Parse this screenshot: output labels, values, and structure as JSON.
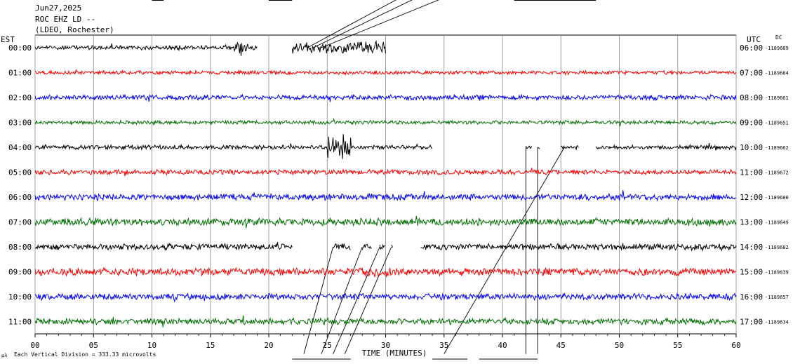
{
  "header": {
    "date": "Jun27,2025",
    "station": "ROC EHZ LD --",
    "network": "(LDEO, Rochester)"
  },
  "labels": {
    "left_zone": "EST",
    "right_zone": "UTC",
    "dc": "DC",
    "x_title": "TIME (MINUTES)",
    "scale_note": "Each Vertical Division =  333.33 microvolts",
    "corner_mark": "μλ"
  },
  "chart_data": {
    "type": "line",
    "title": "",
    "xlabel": "TIME (MINUTES)",
    "ylabel": "",
    "xlim": [
      0,
      60
    ],
    "x_ticks": [
      "00",
      "05",
      "10",
      "15",
      "20",
      "25",
      "30",
      "35",
      "40",
      "45",
      "50",
      "55",
      "60"
    ],
    "grid": true,
    "trace_colors": [
      "#000000",
      "#ff0000",
      "#0000ff",
      "#007000"
    ],
    "rows": [
      {
        "est": "00:00",
        "utc": "06:00",
        "dc": "-1189689",
        "color": "#000000"
      },
      {
        "est": "01:00",
        "utc": "07:00",
        "dc": "-1189684",
        "color": "#ff0000"
      },
      {
        "est": "02:00",
        "utc": "08:00",
        "dc": "-1189661",
        "color": "#0000ff"
      },
      {
        "est": "03:00",
        "utc": "09:00",
        "dc": "-1189651",
        "color": "#007000"
      },
      {
        "est": "04:00",
        "utc": "10:00",
        "dc": "-1189662",
        "color": "#000000"
      },
      {
        "est": "05:00",
        "utc": "11:00",
        "dc": "-1189672",
        "color": "#ff0000"
      },
      {
        "est": "06:00",
        "utc": "12:00",
        "dc": "-1189680",
        "color": "#0000ff"
      },
      {
        "est": "07:00",
        "utc": "13:00",
        "dc": "-1189649",
        "color": "#007000"
      },
      {
        "est": "08:00",
        "utc": "14:00",
        "dc": "-1189682",
        "color": "#000000"
      },
      {
        "est": "09:00",
        "utc": "15:00",
        "dc": "-1189639",
        "color": "#ff0000"
      },
      {
        "est": "10:00",
        "utc": "16:00",
        "dc": "-1189657",
        "color": "#0000ff"
      },
      {
        "est": "11:00",
        "utc": "17:00",
        "dc": "-1189634",
        "color": "#007000"
      }
    ]
  }
}
